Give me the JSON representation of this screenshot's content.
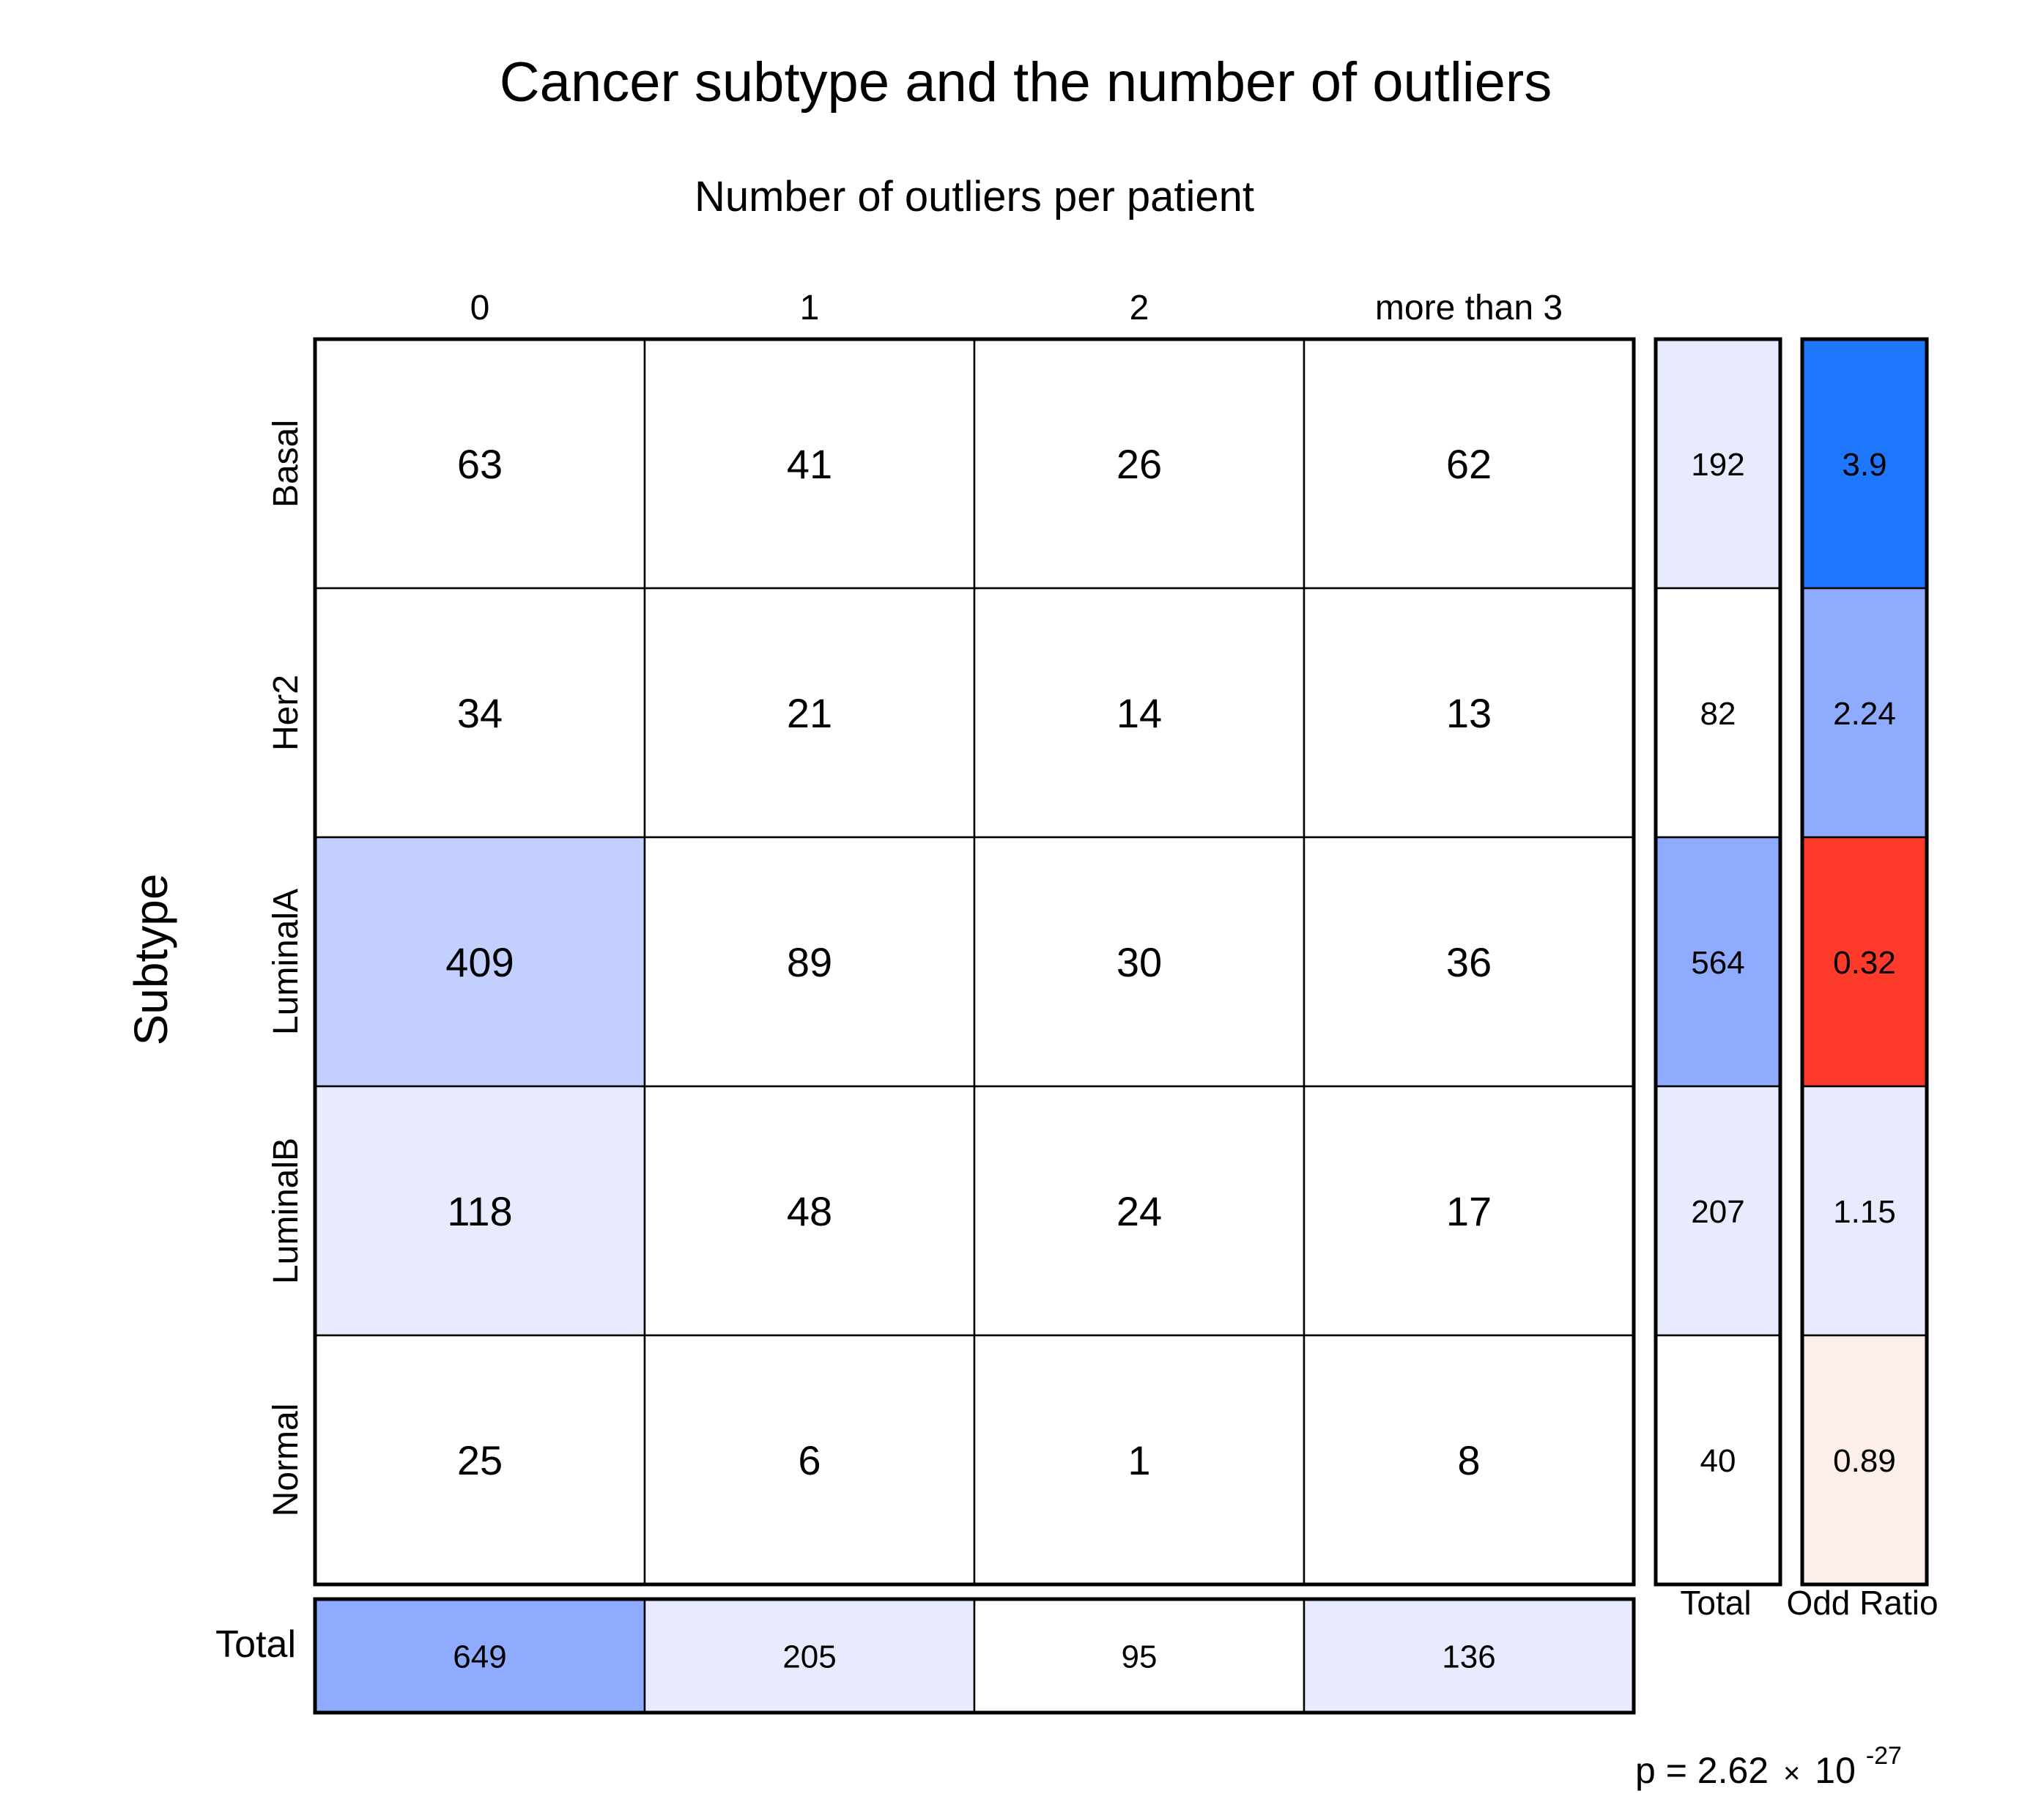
{
  "chart_data": {
    "type": "table",
    "title": "Cancer subtype and the number of outliers",
    "xlabel": "Number of outliers per patient",
    "ylabel": "Subtype",
    "columns": [
      "0",
      "1",
      "2",
      "more than 3"
    ],
    "rows": [
      "Basal",
      "Her2",
      "LuminalA",
      "LuminalB",
      "Normal"
    ],
    "values": [
      [
        63,
        41,
        26,
        62
      ],
      [
        34,
        21,
        14,
        13
      ],
      [
        409,
        89,
        30,
        36
      ],
      [
        118,
        48,
        24,
        17
      ],
      [
        25,
        6,
        1,
        8
      ]
    ],
    "cell_colors": [
      [
        "#ffffff",
        "#ffffff",
        "#ffffff",
        "#ffffff"
      ],
      [
        "#ffffff",
        "#ffffff",
        "#ffffff",
        "#ffffff"
      ],
      [
        "#c3cffe",
        "#ffffff",
        "#ffffff",
        "#ffffff"
      ],
      [
        "#e8ebfd",
        "#ffffff",
        "#ffffff",
        "#ffffff"
      ],
      [
        "#ffffff",
        "#ffffff",
        "#ffffff",
        "#ffffff"
      ]
    ],
    "row_total_label": "Total",
    "row_totals": [
      192,
      82,
      564,
      207,
      40
    ],
    "row_total_colors": [
      "#e8ebfd",
      "#ffffff",
      "#8fabfe",
      "#e8ebfd",
      "#ffffff"
    ],
    "odds_ratio_label": "Odd Ratio",
    "odds_ratios": [
      "3.9",
      "2.24",
      "0.32",
      "1.15",
      "0.89"
    ],
    "odds_ratio_colors": [
      "#1f77fe",
      "#8fabfe",
      "#fe3a2a",
      "#e8ebfd",
      "#fdeeea"
    ],
    "column_total_label": "Total",
    "column_totals": [
      649,
      205,
      95,
      136
    ],
    "column_total_colors": [
      "#8fabfe",
      "#e8ebfd",
      "#ffffff",
      "#e8ebfd"
    ],
    "p_value": {
      "prefix": "p = 2.62",
      "times": "×",
      "base": "10",
      "exponent": "-27"
    }
  }
}
